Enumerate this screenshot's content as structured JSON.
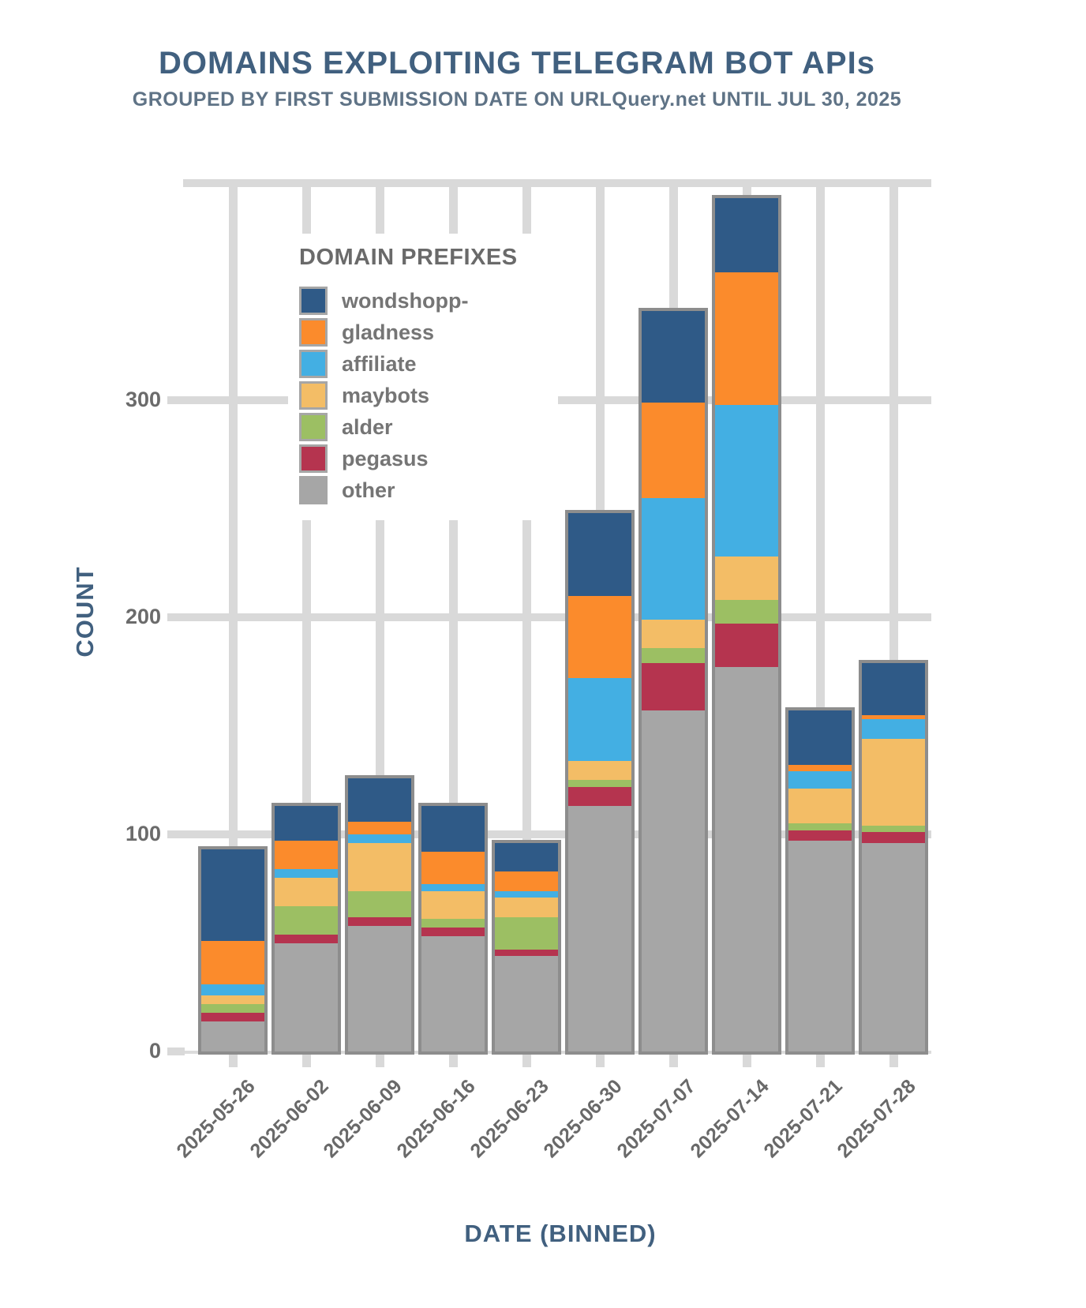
{
  "header": {
    "title": "DOMAINS EXPLOITING TELEGRAM BOT APIs",
    "subtitle": "GROUPED BY FIRST SUBMISSION DATE ON URLQuery.net UNTIL JUL 30, 2025"
  },
  "axes": {
    "x_label": "DATE (BINNED)",
    "y_label": "COUNT",
    "y_ticks": [
      0,
      100,
      200,
      300
    ],
    "y_gridlines": [
      100,
      200,
      300,
      400
    ]
  },
  "legend": {
    "title": "DOMAIN PREFIXES",
    "items": [
      {
        "label": "wondshopp-",
        "color": "#2f5a87"
      },
      {
        "label": "gladness",
        "color": "#fb8b2c"
      },
      {
        "label": "affiliate",
        "color": "#43afe3"
      },
      {
        "label": "maybots",
        "color": "#f3bd66"
      },
      {
        "label": "alder",
        "color": "#9cbf63"
      },
      {
        "label": "pegasus",
        "color": "#b5344f"
      },
      {
        "label": "other",
        "color": "#a6a6a6"
      }
    ]
  },
  "chart_data": {
    "type": "bar",
    "stacked": true,
    "title": "DOMAINS EXPLOITING TELEGRAM BOT APIs",
    "subtitle": "GROUPED BY FIRST SUBMISSION DATE ON URLQuery.net UNTIL JUL 30, 2025",
    "xlabel": "DATE (BINNED)",
    "ylabel": "COUNT",
    "ylim": [
      0,
      400
    ],
    "grid": "both",
    "legend_position": "upper-left-inside",
    "categories": [
      "2025-05-26",
      "2025-06-02",
      "2025-06-09",
      "2025-06-16",
      "2025-06-23",
      "2025-06-30",
      "2025-07-07",
      "2025-07-14",
      "2025-07-21",
      "2025-07-28"
    ],
    "series": [
      {
        "name": "other",
        "color": "#a6a6a6",
        "values": [
          14,
          50,
          58,
          53,
          44,
          113,
          157,
          177,
          97,
          96
        ]
      },
      {
        "name": "pegasus",
        "color": "#b5344f",
        "values": [
          4,
          4,
          4,
          4,
          3,
          9,
          22,
          20,
          5,
          5
        ]
      },
      {
        "name": "alder",
        "color": "#9cbf63",
        "values": [
          4,
          13,
          12,
          4,
          15,
          3,
          7,
          11,
          3,
          3
        ]
      },
      {
        "name": "maybots",
        "color": "#f3bd66",
        "values": [
          4,
          13,
          22,
          13,
          9,
          9,
          13,
          20,
          16,
          40
        ]
      },
      {
        "name": "affiliate",
        "color": "#43afe3",
        "values": [
          5,
          4,
          4,
          3,
          3,
          38,
          56,
          70,
          8,
          9
        ]
      },
      {
        "name": "gladness",
        "color": "#fb8b2c",
        "values": [
          20,
          13,
          6,
          15,
          9,
          38,
          44,
          61,
          3,
          2
        ]
      },
      {
        "name": "wondshopp-",
        "color": "#2f5a87",
        "values": [
          42,
          16,
          20,
          21,
          13,
          38,
          42,
          34,
          25,
          24
        ]
      }
    ],
    "totals": [
      93,
      113,
      126,
      113,
      96,
      248,
      341,
      393,
      157,
      179
    ]
  },
  "colors": {
    "background": "#ffffff",
    "gridline": "#d9d9d9",
    "bar_border": "#8d8d8d",
    "title_text": "#41607f",
    "subtitle_text": "#5f7386",
    "axis_label_text": "#41607f",
    "tick_label_text": "#6b6b6b",
    "legend_text": "#757575"
  }
}
